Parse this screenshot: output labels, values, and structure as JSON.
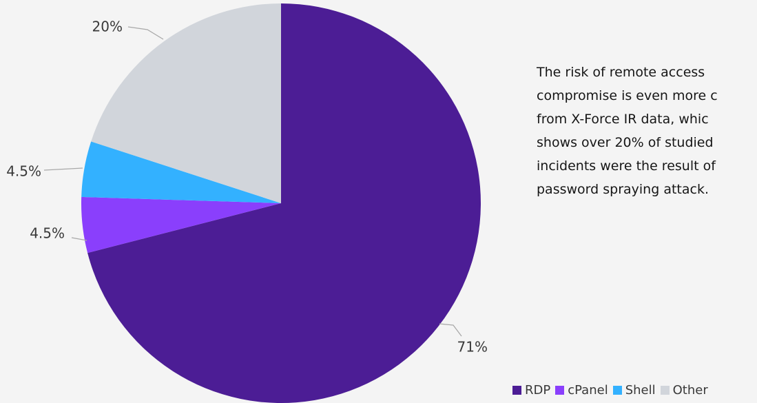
{
  "chart_data": {
    "type": "pie",
    "categories": [
      "RDP",
      "cPanel",
      "Shell",
      "Other"
    ],
    "values": [
      71,
      4.5,
      4.5,
      20
    ],
    "data_labels": [
      "71%",
      "4.5%",
      "4.5%",
      "20%"
    ],
    "colors": [
      "#4c1d95",
      "#8a3ffc",
      "#33b1ff",
      "#d1d5db"
    ],
    "start_angle_deg": 0,
    "direction": "clockwise",
    "legend_position": "bottom-right"
  },
  "annotation": {
    "lines": [
      "The risk of remote access",
      "compromise is even more c",
      "from X-Force IR data, whic",
      "shows over 20% of studied",
      "incidents were the result of",
      "password spraying attack."
    ]
  }
}
